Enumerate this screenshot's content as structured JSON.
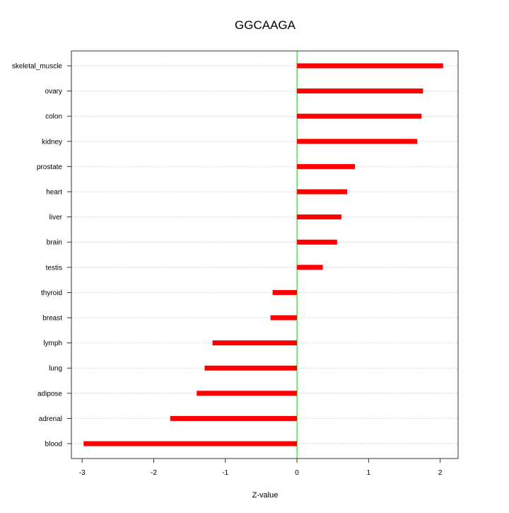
{
  "chart_data": {
    "type": "bar",
    "orientation": "horizontal",
    "title": "GGCAAGA",
    "xlabel": "Z-value",
    "ylabel": "",
    "categories": [
      "skeletal_muscle",
      "ovary",
      "colon",
      "kidney",
      "prostate",
      "heart",
      "liver",
      "brain",
      "testis",
      "thyroid",
      "breast",
      "lymph",
      "lung",
      "adipose",
      "adrenal",
      "blood"
    ],
    "values": [
      2.04,
      1.76,
      1.74,
      1.68,
      0.81,
      0.7,
      0.62,
      0.56,
      0.36,
      -0.34,
      -0.37,
      -1.18,
      -1.29,
      -1.4,
      -1.77,
      -2.98
    ],
    "xlim": [
      -3.15,
      2.25
    ],
    "xticks": [
      -3,
      -2,
      -1,
      0,
      1,
      2
    ],
    "grid": true,
    "bar_color": "#ff0000",
    "zero_line_color": "#00dd00",
    "grid_color": "#c8c8c8"
  }
}
